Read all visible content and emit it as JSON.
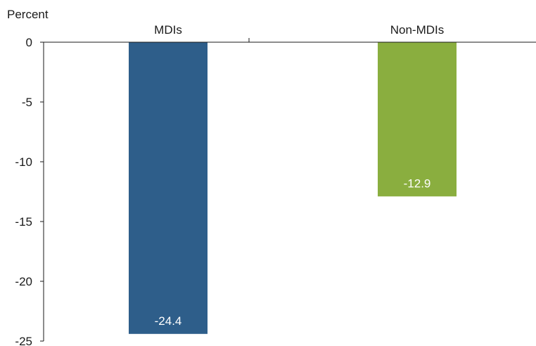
{
  "chart_data": {
    "type": "bar",
    "ylabel": "Percent",
    "categories": [
      "MDIs",
      "Non-MDIs"
    ],
    "values": [
      -24.4,
      -12.9
    ],
    "data_labels": [
      "-24.4",
      "-12.9"
    ],
    "colors": [
      "#2e5e8a",
      "#8aae3f"
    ],
    "ylim": [
      -25,
      0
    ],
    "yticks": [
      0,
      -5,
      -10,
      -15,
      -20,
      -25
    ],
    "ytick_labels": [
      "0",
      "-5",
      "-10",
      "-15",
      "-20",
      "-25"
    ],
    "category_axis_position": "top",
    "grid": false,
    "legend": "none"
  }
}
